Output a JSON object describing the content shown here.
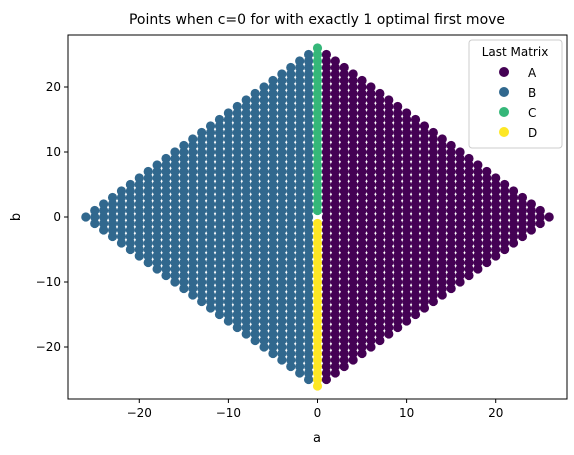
{
  "chart_data": {
    "type": "scatter",
    "title": "Points when c=0 for with exactly 1 optimal first move",
    "xlabel": "a",
    "ylabel": "b",
    "xlim": [
      -28,
      28
    ],
    "ylim": [
      -28,
      28
    ],
    "xticks": [
      -20,
      -10,
      0,
      10,
      20
    ],
    "yticks": [
      -20,
      -10,
      0,
      10,
      20
    ],
    "grid": false,
    "diamond_radius": 26,
    "legend": {
      "title": "Last Matrix",
      "placement": "upper-right",
      "entries": [
        "A",
        "B",
        "C",
        "D"
      ]
    },
    "series": [
      {
        "name": "A",
        "color": "#440154",
        "rule": "a > 0, |a| + |b| <= 26"
      },
      {
        "name": "B",
        "color": "#31688e",
        "rule": "a < 0, |a| + |b| <= 26"
      },
      {
        "name": "C",
        "color": "#35b779",
        "rule": "a = 0, b > 0"
      },
      {
        "name": "D",
        "color": "#fde725",
        "rule": "a = 0, b < 0"
      }
    ]
  }
}
